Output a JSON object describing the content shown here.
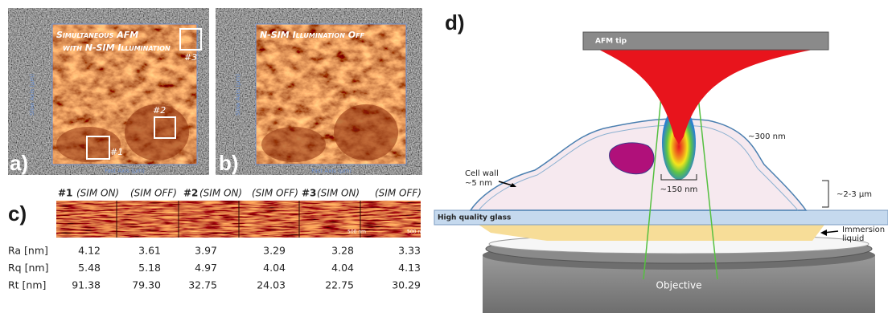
{
  "panels": {
    "a": {
      "label": "a)",
      "title_lines": [
        "Simultaneous AFM",
        "with N-SIM Illumination"
      ],
      "regions": [
        "#1",
        "#2",
        "#3"
      ],
      "x_axis": "Fast Axis (µm)",
      "y_axis": "Slow Axis (µm)"
    },
    "b": {
      "label": "b)",
      "title": "N-SIM Illumination Off",
      "x_axis": "Fast Axis (µm)",
      "y_axis": "Slow Axis (µm)"
    },
    "c": {
      "label": "c)",
      "headers": [
        "#1",
        "(SIM ON)",
        "(SIM OFF)",
        "#2",
        "(SIM ON)",
        "(SIM OFF)",
        "#3",
        "(SIM ON)",
        "(SIM OFF)"
      ],
      "scale_bar": "500 nm",
      "table": {
        "rows": [
          {
            "label": "Ra [nm]",
            "values": [
              "4.12",
              "3.61",
              "3.97",
              "3.29",
              "3.28",
              "3.33"
            ]
          },
          {
            "label": "Rq [nm]",
            "values": [
              "5.48",
              "5.18",
              "4.97",
              "4.04",
              "4.04",
              "4.13"
            ]
          },
          {
            "label": "Rt  [nm]",
            "values": [
              "91.38",
              "79.30",
              "32.75",
              "24.03",
              "22.75",
              "30.29"
            ]
          }
        ]
      }
    },
    "d": {
      "label": "d)",
      "tip": "AFM tip",
      "spot_height": "~300 nm",
      "spot_width": "~150 nm",
      "cell_wall": [
        "Cell wall",
        "~5 nm"
      ],
      "cell_height": "~2-3 µm",
      "glass": "High quality glass",
      "liquid": [
        "Immersion",
        "liquid"
      ],
      "objective": "Objective"
    }
  }
}
